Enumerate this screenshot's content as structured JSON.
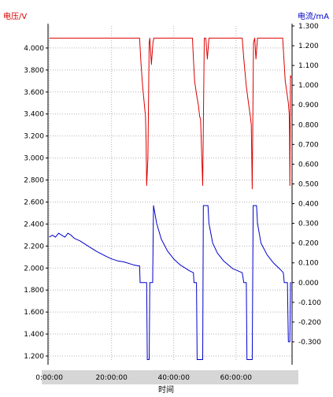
{
  "chart_data": {
    "type": "line",
    "xlabel": "时间",
    "ylabel_left": "电压/V",
    "ylabel_right": "电流/mA",
    "colors": {
      "voltage": "#dd0000",
      "current": "#0000cc",
      "grid": "#b4b4b4",
      "xband": "#d6d6d6"
    },
    "grid": true,
    "x_unit": "hours",
    "x_ticks": [
      {
        "v": 0,
        "label": "0:00:00"
      },
      {
        "v": 20,
        "label": "20:00:00"
      },
      {
        "v": 40,
        "label": "40:00:00"
      },
      {
        "v": 60,
        "label": "60:00:00"
      }
    ],
    "xlim": [
      -0.4,
      78
    ],
    "ylim_left": [
      1.15,
      4.2
    ],
    "ylim_right": [
      -0.4,
      1.3
    ],
    "y_ticks_left": [
      "4.000",
      "3.800",
      "3.600",
      "3.400",
      "3.200",
      "3.000",
      "2.800",
      "2.600",
      "2.400",
      "2.200",
      "2.000",
      "1.800",
      "1.600",
      "1.400",
      "1.200"
    ],
    "y_ticks_right": [
      "1.300",
      "1.200",
      "1.100",
      "1.000",
      "0.900",
      "0.800",
      "0.700",
      "0.600",
      "0.500",
      "0.400",
      "0.300",
      "0.200",
      "0.100",
      "0.000",
      "-0.100",
      "-0.200",
      "-0.300"
    ],
    "series": [
      {
        "name": "电压/V",
        "axis": "left",
        "x": [
          0,
          29,
          29.5,
          30,
          30.5,
          30.9,
          31.1,
          31.3,
          31.7,
          32.1,
          32.3,
          32.8,
          33.3,
          33.6,
          46,
          46.3,
          46.7,
          47.3,
          47.9,
          48.3,
          48.6,
          48.9,
          49.3,
          49.8,
          50.3,
          50.8,
          51.3,
          62,
          62.5,
          63.3,
          64.1,
          64.6,
          64.9,
          65.2,
          65.6,
          66.0,
          66.4,
          66.9,
          75,
          75.8,
          76.3,
          76.8,
          77.1,
          77.2,
          77.3,
          77.5,
          77.7
        ],
        "values": [
          4.09,
          4.09,
          3.85,
          3.65,
          3.5,
          3.38,
          3.15,
          2.75,
          3.0,
          4.05,
          4.09,
          3.85,
          4.05,
          4.09,
          4.09,
          3.9,
          3.7,
          3.58,
          3.48,
          3.38,
          3.35,
          3.1,
          2.75,
          4.09,
          4.09,
          3.9,
          4.09,
          4.09,
          3.9,
          3.65,
          3.48,
          3.38,
          3.3,
          2.72,
          4.05,
          4.09,
          3.9,
          4.09,
          4.09,
          3.7,
          3.6,
          3.5,
          3.4,
          3.2,
          2.75,
          3.75,
          3.73
        ]
      },
      {
        "name": "电流/mA",
        "axis": "right",
        "x": [
          0,
          1,
          2,
          3,
          4,
          5,
          6,
          7,
          8,
          10,
          12,
          15,
          18,
          20,
          22,
          24,
          27,
          28.5,
          29,
          29.2,
          29.5,
          31.3,
          31.5,
          32.1,
          32.3,
          33.2,
          33.5,
          34.5,
          36,
          38,
          40,
          42,
          45,
          46.3,
          46.5,
          47.3,
          47.5,
          49.3,
          49.5,
          51,
          51.3,
          52.5,
          54,
          56,
          59,
          62,
          62.5,
          63.3,
          63.5,
          65.2,
          65.5,
          66.6,
          66.9,
          68,
          70,
          72,
          74,
          75.2,
          75.5,
          76.5,
          76.8,
          77.3,
          77.5,
          77.7
        ],
        "values": [
          0.23,
          0.24,
          0.23,
          0.25,
          0.24,
          0.23,
          0.25,
          0.24,
          0.225,
          0.21,
          0.19,
          0.16,
          0.135,
          0.12,
          0.11,
          0.105,
          0.09,
          0.085,
          0.085,
          0.0,
          0.0,
          0.0,
          -0.39,
          -0.39,
          0.0,
          0.0,
          0.39,
          0.3,
          0.22,
          0.16,
          0.12,
          0.09,
          0.06,
          0.05,
          0.0,
          0.0,
          -0.39,
          -0.39,
          0.39,
          0.39,
          0.3,
          0.2,
          0.15,
          0.11,
          0.07,
          0.05,
          0.0,
          0.0,
          -0.39,
          -0.39,
          0.39,
          0.39,
          0.3,
          0.2,
          0.14,
          0.1,
          0.07,
          0.05,
          0.0,
          0.0,
          -0.3,
          -0.3,
          0.0,
          0.0
        ]
      }
    ]
  }
}
